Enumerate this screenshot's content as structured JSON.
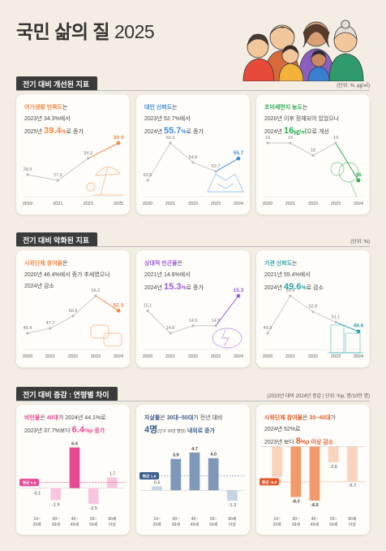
{
  "title": {
    "main": "국민 삶의 질",
    "year": "2025"
  },
  "sections": [
    {
      "label": "전기 대비 개선된 지표",
      "unit": "(단위: %, ㎍/㎥)"
    },
    {
      "label": "전기 대비 악화된 지표",
      "unit": "(단위: %)"
    },
    {
      "label": "전기 대비 증감 : 연령별 차이",
      "unit": "(2023년 대비 2024년 증감 | 단위: %p, 명/10만 명)"
    }
  ],
  "cards": [
    {
      "id": "leisure",
      "accent": "#f08a4b",
      "lines": [
        [
          {
            "t": "여가생활 만족도",
            "c": "orange",
            "b": 1
          },
          {
            "t": "는"
          }
        ],
        [
          {
            "t": "2023년 34.3%에서"
          }
        ],
        [
          {
            "t": "2025년 "
          },
          {
            "t": "39.4",
            "c": "orange",
            "big": 1
          },
          {
            "t": "%",
            "c": "orange",
            "b": 1
          },
          {
            "t": "로 증가"
          }
        ]
      ],
      "chart_data": {
        "type": "line",
        "categories": [
          "2019",
          "2021",
          "2023",
          "2025"
        ],
        "values": [
          28.9,
          27.0,
          34.3,
          39.4
        ],
        "value_labels": [
          "28.9",
          "27.0",
          "34.3",
          "39.4"
        ],
        "highlight_last": true,
        "color": "#f08a4b"
      }
    },
    {
      "id": "trust",
      "accent": "#3a8fd8",
      "lines": [
        [
          {
            "t": "대인 신뢰도",
            "c": "blue",
            "b": 1
          },
          {
            "t": "는"
          }
        ],
        [
          {
            "t": "2023년 52.7%에서"
          }
        ],
        [
          {
            "t": "2024년 "
          },
          {
            "t": "55.7",
            "c": "blue",
            "big": 1
          },
          {
            "t": "%",
            "c": "blue",
            "b": 1
          },
          {
            "t": "로 증가"
          }
        ]
      ],
      "chart_data": {
        "type": "line",
        "categories": [
          "2020",
          "2021",
          "2022",
          "2023",
          "2024"
        ],
        "values": [
          50.6,
          59.3,
          54.8,
          52.7,
          55.7
        ],
        "value_labels": [
          "50.6",
          "59.3",
          "54.8",
          "52.7",
          "55.7"
        ],
        "highlight_last": true,
        "color": "#3a8fd8"
      }
    },
    {
      "id": "dust",
      "accent": "#2eaa55",
      "lines": [
        [
          {
            "t": "초미세먼지 농도",
            "c": "green",
            "b": 1
          },
          {
            "t": "는"
          }
        ],
        [
          {
            "t": "2020년 이후 정체되어 있었으나"
          }
        ],
        [
          {
            "t": "2024년 "
          },
          {
            "t": "16",
            "c": "green",
            "big": 1
          },
          {
            "t": "㎍/㎥",
            "c": "green",
            "b": 1
          },
          {
            "t": "으로 개선"
          }
        ]
      ],
      "chart_data": {
        "type": "line",
        "categories": [
          "2020",
          "2021",
          "2022",
          "2023",
          "2024"
        ],
        "values": [
          19,
          19,
          18,
          19,
          16
        ],
        "value_labels": [
          "19",
          "19",
          "18",
          "19",
          "16"
        ],
        "highlight_last": true,
        "color": "#2eaa55"
      }
    },
    {
      "id": "social",
      "accent": "#f08a4b",
      "lines": [
        [
          {
            "t": "사회단체 참여율",
            "c": "orange",
            "b": 1
          },
          {
            "t": "은"
          }
        ],
        [
          {
            "t": "2020년 46.4%에서 증가 추세였으나"
          }
        ],
        [
          {
            "t": "2024년 감소"
          }
        ]
      ],
      "chart_data": {
        "type": "line",
        "categories": [
          "2020",
          "2021",
          "2022",
          "2023",
          "2024"
        ],
        "values": [
          46.4,
          47.7,
          50.9,
          56.2,
          52.3
        ],
        "value_labels": [
          "46.4",
          "47.7",
          "50.9",
          "56.2",
          "52.3"
        ],
        "highlight_last": true,
        "color": "#f08a4b"
      }
    },
    {
      "id": "poverty",
      "accent": "#9a5ad6",
      "lines": [
        [
          {
            "t": "상대적 빈곤율",
            "c": "purple",
            "b": 1
          },
          {
            "t": "은"
          }
        ],
        [
          {
            "t": "2021년 14.8%에서"
          }
        ],
        [
          {
            "t": "2024년 "
          },
          {
            "t": "15.3",
            "c": "purple",
            "big": 1
          },
          {
            "t": "%",
            "c": "purple",
            "b": 1
          },
          {
            "t": "로 증가"
          }
        ]
      ],
      "chart_data": {
        "type": "line",
        "categories": [
          "2020",
          "2021",
          "2022",
          "2023",
          "2024"
        ],
        "values": [
          15.1,
          14.8,
          14.9,
          14.9,
          15.3
        ],
        "value_labels": [
          "15.1",
          "14.8",
          "14.9",
          "14.9",
          "15.3"
        ],
        "highlight_last": true,
        "color": "#9a5ad6"
      }
    },
    {
      "id": "institution",
      "accent": "#27a6b0",
      "lines": [
        [
          {
            "t": "기관 신뢰도",
            "c": "teal",
            "b": 1
          },
          {
            "t": "는"
          }
        ],
        [
          {
            "t": "2021년 55.4%에서"
          }
        ],
        [
          {
            "t": "2024년 "
          },
          {
            "t": "49.6",
            "c": "teal",
            "big": 1
          },
          {
            "t": "%",
            "c": "teal",
            "b": 1
          },
          {
            "t": "로 감소"
          }
        ]
      ],
      "chart_data": {
        "type": "line",
        "categories": [
          "2020",
          "2021",
          "2022",
          "2023",
          "2024"
        ],
        "values": [
          49.3,
          55.4,
          52.8,
          51.1,
          49.6
        ],
        "value_labels": [
          "49.3",
          "55.4",
          "52.8",
          "51.1",
          "49.6"
        ],
        "highlight_last": true,
        "color": "#27a6b0"
      }
    },
    {
      "id": "obesity",
      "accent": "#e64a94",
      "lines": [
        [
          {
            "t": "비만율",
            "c": "pink",
            "b": 1
          },
          {
            "t": "은 "
          },
          {
            "t": "40대",
            "c": "pink",
            "b": 1
          },
          {
            "t": "가 2024년 44.1%로"
          }
        ],
        [
          {
            "t": "2023년 37.7%보다 "
          },
          {
            "t": "6.4",
            "c": "pink",
            "big": 1
          },
          {
            "t": "%p 증가",
            "c": "pink",
            "b": 1
          }
        ]
      ],
      "chart_data": {
        "type": "bar",
        "categories": [
          "19~\n29세",
          "30~\n39세",
          "40~\n49세",
          "50~\n59세",
          "60세\n이상"
        ],
        "values": [
          -0.1,
          -1.9,
          6.4,
          -2.5,
          1.7
        ],
        "value_labels": [
          "-0.1",
          "-1.9",
          "6.4",
          "-2.5",
          "1.7"
        ],
        "average": {
          "label": "평균 0.9",
          "value": 0.9
        },
        "highlight_index": 2,
        "color": "#e64a94",
        "light": "#f7c6de",
        "ylim": [
          -3.5,
          7.5
        ]
      }
    },
    {
      "id": "suicide",
      "accent": "#3b5f8c",
      "lines": [
        [
          {
            "t": "자살률",
            "c": "navy",
            "b": 1
          },
          {
            "t": "은 "
          },
          {
            "t": "30대~50대",
            "c": "navy",
            "b": 1
          },
          {
            "t": "가 전년 대비"
          }
        ],
        [
          {
            "t": "4명",
            "c": "navy",
            "big": 1
          },
          {
            "t": "(인구 10만 명당)",
            "small": 1
          },
          {
            "t": " 내외로 증가",
            "c": "navy",
            "b": 1
          }
        ]
      ],
      "chart_data": {
        "type": "bar",
        "categories": [
          "19~\n29세",
          "30~\n39세",
          "40~\n49세",
          "50~\n59세",
          "60세\n이상"
        ],
        "values": [
          0.5,
          3.9,
          4.7,
          4.0,
          -1.3
        ],
        "value_labels": [
          "0.5",
          "3.9",
          "4.7",
          "4.0",
          "-1.3"
        ],
        "average": {
          "label": "평균 1.8",
          "value": 1.8
        },
        "highlight_index": [
          1,
          2,
          3
        ],
        "color": "#7d98b8",
        "light": "#c6d4e4",
        "ylim": [
          -2.5,
          6.2
        ]
      }
    },
    {
      "id": "social_age",
      "accent": "#e35b2b",
      "lines": [
        [
          {
            "t": "사회단체 참여율",
            "c": "red",
            "b": 1
          },
          {
            "t": "은 "
          },
          {
            "t": "30~40대",
            "c": "red",
            "b": 1
          },
          {
            "t": "가"
          }
        ],
        [
          {
            "t": "2024년 52%로"
          }
        ],
        [
          {
            "t": "2023년 보다 "
          },
          {
            "t": "8",
            "c": "red",
            "big": 1
          },
          {
            "t": "%p 이상 감소",
            "c": "red",
            "b": 1
          }
        ]
      ],
      "chart_data": {
        "type": "bar",
        "categories": [
          "19~\n29세",
          "30~\n39세",
          "40~\n49세",
          "50~\n59세",
          "60세\n이상"
        ],
        "values": [
          -5.0,
          -8.3,
          -8.9,
          -2.6,
          -5.7
        ],
        "value_labels": [
          "-5.0",
          "-8.3",
          "-8.9",
          "-2.6",
          "-5.7"
        ],
        "average": {
          "label": "평균 -5.8",
          "value": -5.8
        },
        "highlight_index": [
          1,
          2
        ],
        "color": "#f29a6b",
        "light": "#f8d3bd",
        "ylim": [
          -10.5,
          1
        ]
      }
    }
  ]
}
